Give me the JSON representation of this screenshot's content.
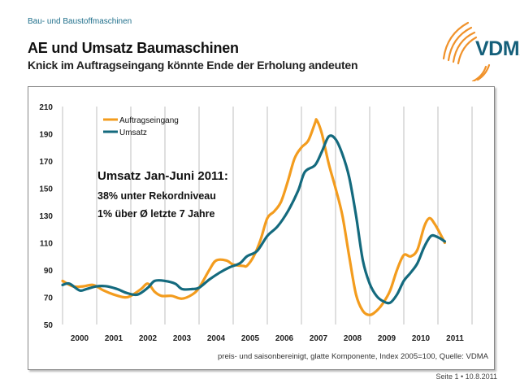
{
  "header": {
    "section": "Bau- und Baustoffmaschinen",
    "title": "AE und Umsatz Baumaschinen",
    "subtitle": "Knick im Auftragseingang könnte Ende der Erholung andeuten",
    "logo_text": "VDMA"
  },
  "footer": {
    "page": "Seite 1 • 10.8.2011"
  },
  "colors": {
    "auftragseingang": "#f39c1e",
    "umsatz": "#146a7e",
    "brand_blue": "#145f7a",
    "brand_orange": "#f0922b",
    "grid": "#bfbfbf"
  },
  "chart_data": {
    "type": "line",
    "title": "AE und Umsatz Baumaschinen",
    "xlabel": "",
    "ylabel": "",
    "ylim": [
      50,
      210
    ],
    "yticks": [
      50,
      70,
      90,
      110,
      130,
      150,
      170,
      190,
      210
    ],
    "xlim": [
      2000,
      2012
    ],
    "x_categories": [
      "2000",
      "2001",
      "2002",
      "2003",
      "2004",
      "2005",
      "2006",
      "2007",
      "2008",
      "2009",
      "2010",
      "2011"
    ],
    "grid": "vertical-year-separators",
    "legend": {
      "placement": "top-left",
      "entries": [
        "Auftragseingang",
        "Umsatz"
      ]
    },
    "annotation": {
      "line1": "Umsatz Jan-Juni 2011:",
      "line2": "38% unter Rekordniveau",
      "line3": "1% über Ø letzte 7 Jahre"
    },
    "note": "preis- und saisonbereinigt, glatte Komponente, Index 2005=100, Quelle: VDMA",
    "series": [
      {
        "name": "Auftragseingang",
        "color": "#f39c1e",
        "x": [
          2000.0,
          2000.3,
          2000.6,
          2000.9,
          2001.2,
          2001.5,
          2001.8,
          2002.0,
          2002.3,
          2002.5,
          2002.7,
          2002.9,
          2003.2,
          2003.5,
          2003.8,
          2004.0,
          2004.3,
          2004.5,
          2004.8,
          2005.0,
          2005.3,
          2005.4,
          2005.6,
          2005.8,
          2006.0,
          2006.2,
          2006.4,
          2006.6,
          2006.8,
          2007.0,
          2007.2,
          2007.4,
          2007.45,
          2007.6,
          2007.8,
          2008.0,
          2008.2,
          2008.4,
          2008.6,
          2008.8,
          2009.0,
          2009.2,
          2009.4,
          2009.6,
          2009.8,
          2010.0,
          2010.2,
          2010.4,
          2010.6,
          2010.75,
          2010.9,
          2011.1,
          2011.2
        ],
        "values": [
          82,
          78,
          78,
          79,
          75,
          72,
          70,
          71,
          76,
          80,
          74,
          71,
          71,
          69,
          72,
          77,
          90,
          97,
          97,
          94,
          93,
          93,
          100,
          112,
          128,
          133,
          140,
          155,
          172,
          180,
          185,
          198,
          200,
          190,
          168,
          150,
          130,
          100,
          72,
          60,
          57,
          60,
          66,
          75,
          90,
          101,
          100,
          105,
          122,
          128,
          124,
          115,
          110
        ]
      },
      {
        "name": "Umsatz",
        "color": "#146a7e",
        "x": [
          2000.0,
          2000.2,
          2000.5,
          2000.7,
          2001.0,
          2001.3,
          2001.6,
          2001.9,
          2002.2,
          2002.5,
          2002.7,
          2003.0,
          2003.3,
          2003.5,
          2003.8,
          2004.0,
          2004.3,
          2004.6,
          2004.9,
          2005.2,
          2005.4,
          2005.7,
          2006.0,
          2006.3,
          2006.6,
          2006.9,
          2007.1,
          2007.4,
          2007.6,
          2007.8,
          2008.0,
          2008.2,
          2008.4,
          2008.6,
          2008.8,
          2009.0,
          2009.2,
          2009.4,
          2009.6,
          2009.8,
          2010.0,
          2010.2,
          2010.4,
          2010.6,
          2010.8,
          2011.0,
          2011.2
        ],
        "values": [
          79,
          80,
          75,
          76,
          78,
          78,
          76,
          73,
          72,
          77,
          82,
          82,
          80,
          76,
          76,
          77,
          83,
          88,
          92,
          95,
          100,
          104,
          115,
          122,
          133,
          148,
          162,
          167,
          177,
          188,
          186,
          175,
          158,
          130,
          97,
          80,
          71,
          67,
          66,
          72,
          82,
          88,
          95,
          107,
          115,
          114,
          111
        ]
      }
    ]
  }
}
